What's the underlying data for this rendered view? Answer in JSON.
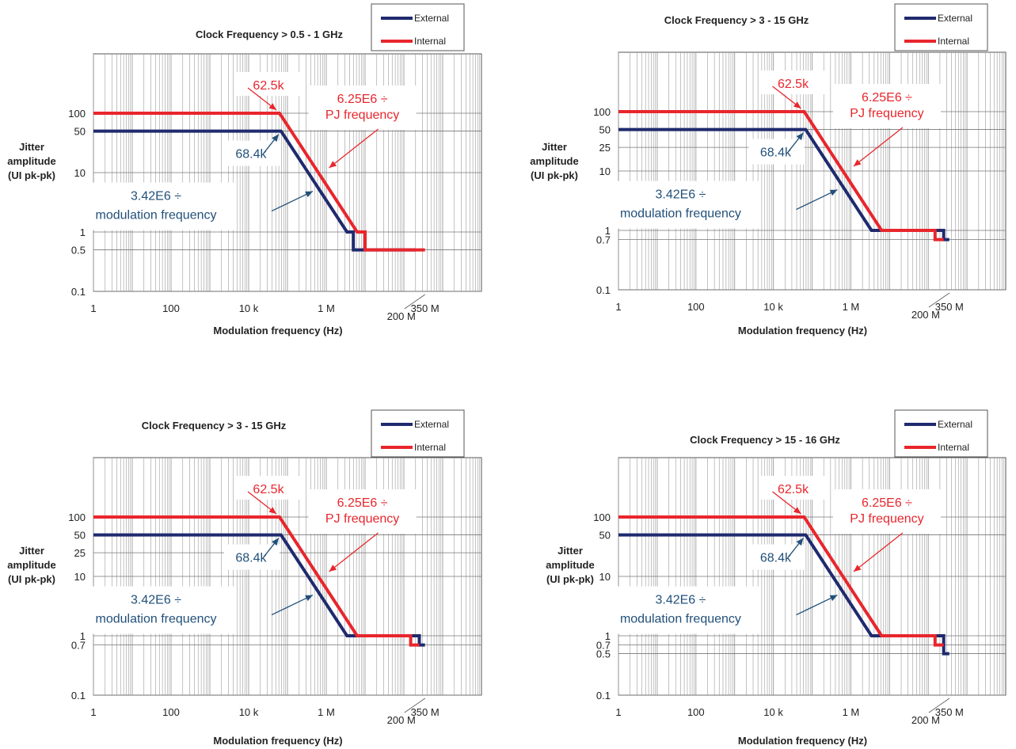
{
  "colors": {
    "external": "#1f2a6e",
    "internal": "#e8262c",
    "ext_label": "#22507a",
    "int_label": "#e8262c",
    "grid": "#9a9a9a",
    "text": "#222222"
  },
  "chart_data": [
    {
      "type": "line",
      "title": "Clock Frequency > 0.5 - 1 GHz",
      "xlabel": "Modulation frequency (Hz)",
      "ylabel": [
        "Jitter",
        "amplitude",
        "(UI pk-pk)"
      ],
      "xscale": "log",
      "yscale": "log",
      "xlim": [
        1,
        350000000
      ],
      "ylim": [
        0.1,
        1000
      ],
      "grid": true,
      "legend": "top-right",
      "x_ticks": [
        {
          "v": 1,
          "t": "1"
        },
        {
          "v": 100,
          "t": "100"
        },
        {
          "v": 10000,
          "t": "10 k"
        },
        {
          "v": 1000000,
          "t": "1 M"
        },
        {
          "v": 350000000,
          "t": "350 M"
        }
      ],
      "x_extra_label": {
        "v": 200000000,
        "t": "200 M"
      },
      "y_ticks": [
        {
          "v": 100,
          "t": "100"
        },
        {
          "v": 50,
          "t": "50"
        },
        {
          "v": 10,
          "t": "10"
        },
        {
          "v": 1,
          "t": "1"
        },
        {
          "v": 0.5,
          "t": "0.5"
        },
        {
          "v": 0.1,
          "t": "0.1"
        }
      ],
      "series": [
        {
          "name": "External",
          "points": [
            [
              1,
              50
            ],
            [
              68400,
              50
            ],
            [
              3420000,
              1
            ],
            [
              5000000,
              1
            ],
            [
              5000000,
              0.5
            ],
            [
              200000000,
              0.5
            ]
          ]
        },
        {
          "name": "Internal",
          "points": [
            [
              1,
              100
            ],
            [
              62500,
              100
            ],
            [
              6250000,
              1
            ],
            [
              10000000,
              1
            ],
            [
              10000000,
              0.5
            ],
            [
              350000000,
              0.5
            ]
          ]
        }
      ],
      "annotations": [
        {
          "text": "62.5k",
          "series": "Internal",
          "x": 62500,
          "y": 100
        },
        {
          "text": "6.25E6 ÷",
          "text2": "PJ frequency",
          "series": "Internal",
          "x": 1300000,
          "y": 10
        },
        {
          "text": "68.4k",
          "series": "External",
          "x": 68400,
          "y": 50
        },
        {
          "text": "3.42E6 ÷",
          "text2": "modulation frequency",
          "series": "External",
          "x": 450000,
          "y": 5
        }
      ]
    },
    {
      "type": "line",
      "title": "Clock Frequency > 3 - 15 GHz",
      "xlabel": "Modulation frequency (Hz)",
      "ylabel": [
        "Jitter",
        "amplitude",
        "(UI pk-pk)"
      ],
      "xscale": "log",
      "yscale": "log",
      "xlim": [
        1,
        350000000
      ],
      "ylim": [
        0.1,
        1000
      ],
      "grid": true,
      "legend": "top-right",
      "x_ticks": [
        {
          "v": 1,
          "t": "1"
        },
        {
          "v": 100,
          "t": "100"
        },
        {
          "v": 10000,
          "t": "10 k"
        },
        {
          "v": 1000000,
          "t": "1 M"
        },
        {
          "v": 350000000,
          "t": "350 M"
        }
      ],
      "x_extra_label": {
        "v": 200000000,
        "t": "200 M"
      },
      "y_ticks": [
        {
          "v": 100,
          "t": "100"
        },
        {
          "v": 50,
          "t": "50"
        },
        {
          "v": 25,
          "t": "25"
        },
        {
          "v": 10,
          "t": "10"
        },
        {
          "v": 1,
          "t": "1"
        },
        {
          "v": 0.7,
          "t": "0.7"
        },
        {
          "v": 0.1,
          "t": "0.1"
        }
      ],
      "series": [
        {
          "name": "External",
          "points": [
            [
              1,
              50
            ],
            [
              68400,
              50
            ],
            [
              3420000,
              1
            ],
            [
              250000000,
              1
            ],
            [
              250000000,
              0.7
            ],
            [
              350000000,
              0.7
            ]
          ]
        },
        {
          "name": "Internal",
          "points": [
            [
              1,
              100
            ],
            [
              62500,
              100
            ],
            [
              6250000,
              1
            ],
            [
              150000000,
              1
            ],
            [
              150000000,
              0.7
            ],
            [
              250000000,
              0.7
            ]
          ]
        }
      ],
      "annotations": [
        {
          "text": "62.5k",
          "series": "Internal",
          "x": 62500,
          "y": 100
        },
        {
          "text": "6.25E6 ÷",
          "text2": "PJ frequency",
          "series": "Internal",
          "x": 1300000,
          "y": 10
        },
        {
          "text": "68.4k",
          "series": "External",
          "x": 68400,
          "y": 50
        },
        {
          "text": "3.42E6 ÷",
          "text2": "modulation frequency",
          "series": "External",
          "x": 450000,
          "y": 5
        }
      ]
    },
    {
      "type": "line",
      "title": "Clock Frequency > 3 - 15 GHz",
      "xlabel": "Modulation frequency (Hz)",
      "ylabel": [
        "Jitter",
        "amplitude",
        "(UI pk-pk)"
      ],
      "xscale": "log",
      "yscale": "log",
      "xlim": [
        1,
        350000000
      ],
      "ylim": [
        0.1,
        1000
      ],
      "grid": true,
      "legend": "top-right",
      "x_ticks": [
        {
          "v": 1,
          "t": "1"
        },
        {
          "v": 100,
          "t": "100"
        },
        {
          "v": 10000,
          "t": "10 k"
        },
        {
          "v": 1000000,
          "t": "1 M"
        },
        {
          "v": 350000000,
          "t": "350 M"
        }
      ],
      "x_extra_label": {
        "v": 200000000,
        "t": "200 M"
      },
      "y_ticks": [
        {
          "v": 100,
          "t": "100"
        },
        {
          "v": 50,
          "t": "50"
        },
        {
          "v": 25,
          "t": "25"
        },
        {
          "v": 10,
          "t": "10"
        },
        {
          "v": 1,
          "t": "1"
        },
        {
          "v": 0.7,
          "t": "0.7"
        },
        {
          "v": 0.1,
          "t": "0.1"
        }
      ],
      "series": [
        {
          "name": "External",
          "points": [
            [
              1,
              50
            ],
            [
              68400,
              50
            ],
            [
              3420000,
              1
            ],
            [
              250000000,
              1
            ],
            [
              250000000,
              0.7
            ],
            [
              350000000,
              0.7
            ]
          ]
        },
        {
          "name": "Internal",
          "points": [
            [
              1,
              100
            ],
            [
              62500,
              100
            ],
            [
              6250000,
              1
            ],
            [
              150000000,
              1
            ],
            [
              150000000,
              0.7
            ],
            [
              250000000,
              0.7
            ]
          ]
        }
      ],
      "annotations": [
        {
          "text": "62.5k",
          "series": "Internal",
          "x": 62500,
          "y": 100
        },
        {
          "text": "6.25E6 ÷",
          "text2": "PJ frequency",
          "series": "Internal",
          "x": 1300000,
          "y": 10
        },
        {
          "text": "68.4k",
          "series": "External",
          "x": 68400,
          "y": 50
        },
        {
          "text": "3.42E6 ÷",
          "text2": "modulation frequency",
          "series": "External",
          "x": 450000,
          "y": 5
        }
      ]
    },
    {
      "type": "line",
      "title": "Clock Frequency > 15 - 16 GHz",
      "xlabel": "Modulation frequency (Hz)",
      "ylabel": [
        "Jitter",
        "amplitude",
        "(UI pk-pk)"
      ],
      "xscale": "log",
      "yscale": "log",
      "xlim": [
        1,
        350000000
      ],
      "ylim": [
        0.1,
        1000
      ],
      "grid": true,
      "legend": "top-right",
      "x_ticks": [
        {
          "v": 1,
          "t": "1"
        },
        {
          "v": 100,
          "t": "100"
        },
        {
          "v": 10000,
          "t": "10 k"
        },
        {
          "v": 1000000,
          "t": "1 M"
        },
        {
          "v": 350000000,
          "t": "350 M"
        }
      ],
      "x_extra_label": {
        "v": 200000000,
        "t": "200 M"
      },
      "y_ticks": [
        {
          "v": 100,
          "t": "100"
        },
        {
          "v": 50,
          "t": "50"
        },
        {
          "v": 10,
          "t": "10"
        },
        {
          "v": 1,
          "t": "1"
        },
        {
          "v": 0.7,
          "t": "0.7"
        },
        {
          "v": 0.5,
          "t": "0.5"
        },
        {
          "v": 0.1,
          "t": "0.1"
        }
      ],
      "series": [
        {
          "name": "External",
          "points": [
            [
              1,
              50
            ],
            [
              68400,
              50
            ],
            [
              3420000,
              1
            ],
            [
              250000000,
              1
            ],
            [
              250000000,
              0.5
            ],
            [
              350000000,
              0.5
            ]
          ]
        },
        {
          "name": "Internal",
          "points": [
            [
              1,
              100
            ],
            [
              62500,
              100
            ],
            [
              6250000,
              1
            ],
            [
              150000000,
              1
            ],
            [
              150000000,
              0.7
            ],
            [
              250000000,
              0.7
            ]
          ]
        }
      ],
      "annotations": [
        {
          "text": "62.5k",
          "series": "Internal",
          "x": 62500,
          "y": 100
        },
        {
          "text": "6.25E6 ÷",
          "text2": "PJ frequency",
          "series": "Internal",
          "x": 1300000,
          "y": 10
        },
        {
          "text": "68.4k",
          "series": "External",
          "x": 68400,
          "y": 50
        },
        {
          "text": "3.42E6 ÷",
          "text2": "modulation frequency",
          "series": "External",
          "x": 450000,
          "y": 5
        }
      ]
    }
  ]
}
